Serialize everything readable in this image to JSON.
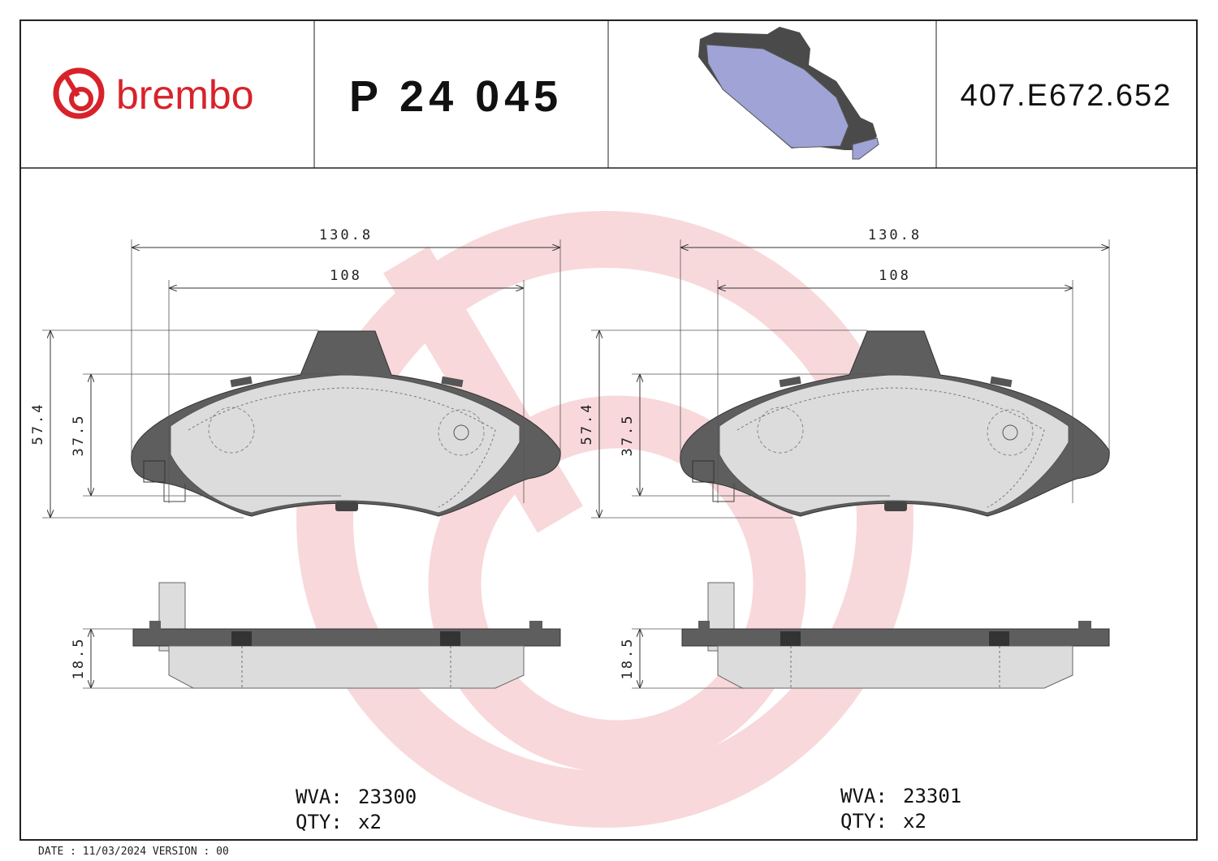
{
  "header": {
    "brand": "brembo",
    "part_number": "P 24 045",
    "code": "407.E672.652"
  },
  "views": [
    {
      "dimensions": {
        "width_overall": "130.8",
        "width_inner": "108",
        "height_overall": "57.4",
        "height_inner": "37.5",
        "thickness": "18.5"
      },
      "wva_label": "WVA:",
      "wva": "23300",
      "qty_label": "QTY:",
      "qty": "x2"
    },
    {
      "dimensions": {
        "width_overall": "130.8",
        "width_inner": "108",
        "height_overall": "57.4",
        "height_inner": "37.5",
        "thickness": "18.5"
      },
      "wva_label": "WVA:",
      "wva": "23301",
      "qty_label": "QTY:",
      "qty": "x2"
    }
  ],
  "footer": "DATE : 11/03/2024 VERSION : 00"
}
